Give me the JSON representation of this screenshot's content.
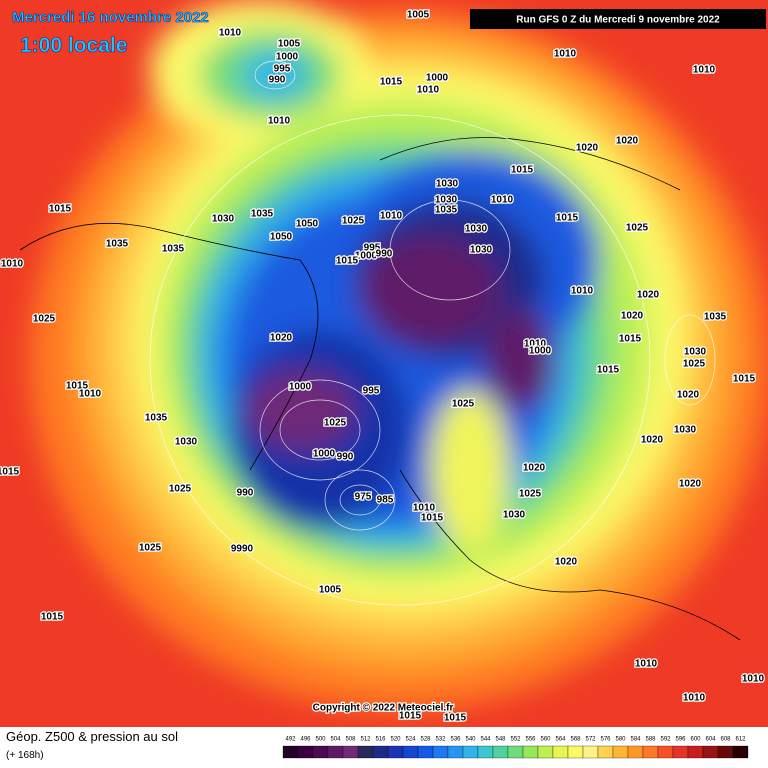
{
  "header": {
    "date": "Mercredi 16 novembre 2022",
    "time": "1:00 locale",
    "run": "Run GFS 0 Z du Mercredi 9 novembre 2022"
  },
  "footer": {
    "copyright": "Copyright © 2022 Meteociel.fr",
    "title": "Géop. Z500 & pression au sol",
    "lead": "(+ 168h)"
  },
  "legend": {
    "ticks": [
      492,
      496,
      500,
      504,
      508,
      512,
      516,
      520,
      524,
      528,
      532,
      536,
      540,
      544,
      548,
      552,
      556,
      560,
      564,
      568,
      572,
      576,
      580,
      584,
      588,
      592,
      596,
      600,
      604,
      608,
      612
    ],
    "colors": [
      "#24002a",
      "#38003e",
      "#4c0a55",
      "#5e1a68",
      "#6e2a78",
      "#2a2a5a",
      "#1e2a8a",
      "#1e32b4",
      "#1446d2",
      "#145ae6",
      "#1e78f0",
      "#2896f0",
      "#32b4e6",
      "#3cc8c8",
      "#50d2a0",
      "#6edc78",
      "#96e65a",
      "#bef050",
      "#e6f550",
      "#fafa64",
      "#fff08c",
      "#ffd250",
      "#ffb432",
      "#ff9628",
      "#ff7828",
      "#f55028",
      "#e63228",
      "#c81e1e",
      "#961414",
      "#640a0a",
      "#280000"
    ]
  },
  "labels": {
    "isobars": [
      "1005",
      "1010",
      "1005",
      "1000",
      "995",
      "990",
      "1015",
      "1000",
      "1010",
      "1010",
      "1010",
      "1010",
      "1020",
      "1020",
      "1015",
      "1030",
      "1030",
      "1010",
      "1035",
      "1015",
      "1025",
      "1030",
      "1030",
      "1015",
      "1030",
      "1035",
      "1050",
      "1035",
      "1035",
      "1050",
      "1025",
      "1010",
      "995",
      "1000",
      "990",
      "1015",
      "1010",
      "1025",
      "1020",
      "1010",
      "1020",
      "1020",
      "1035",
      "1010",
      "1000",
      "1015",
      "1030",
      "1025",
      "1015",
      "1015",
      "1010",
      "1000",
      "995",
      "1015",
      "1020",
      "1035",
      "1025",
      "1025",
      "1030",
      "1020",
      "1030",
      "1000",
      "990",
      "1015",
      "1025",
      "990",
      "1020",
      "1020",
      "1025",
      "975",
      "985",
      "1010",
      "1030",
      "1015",
      "9990",
      "1025",
      "1020",
      "1005",
      "1015",
      "1010",
      "1010",
      "1010",
      "1015",
      "1015"
    ]
  }
}
